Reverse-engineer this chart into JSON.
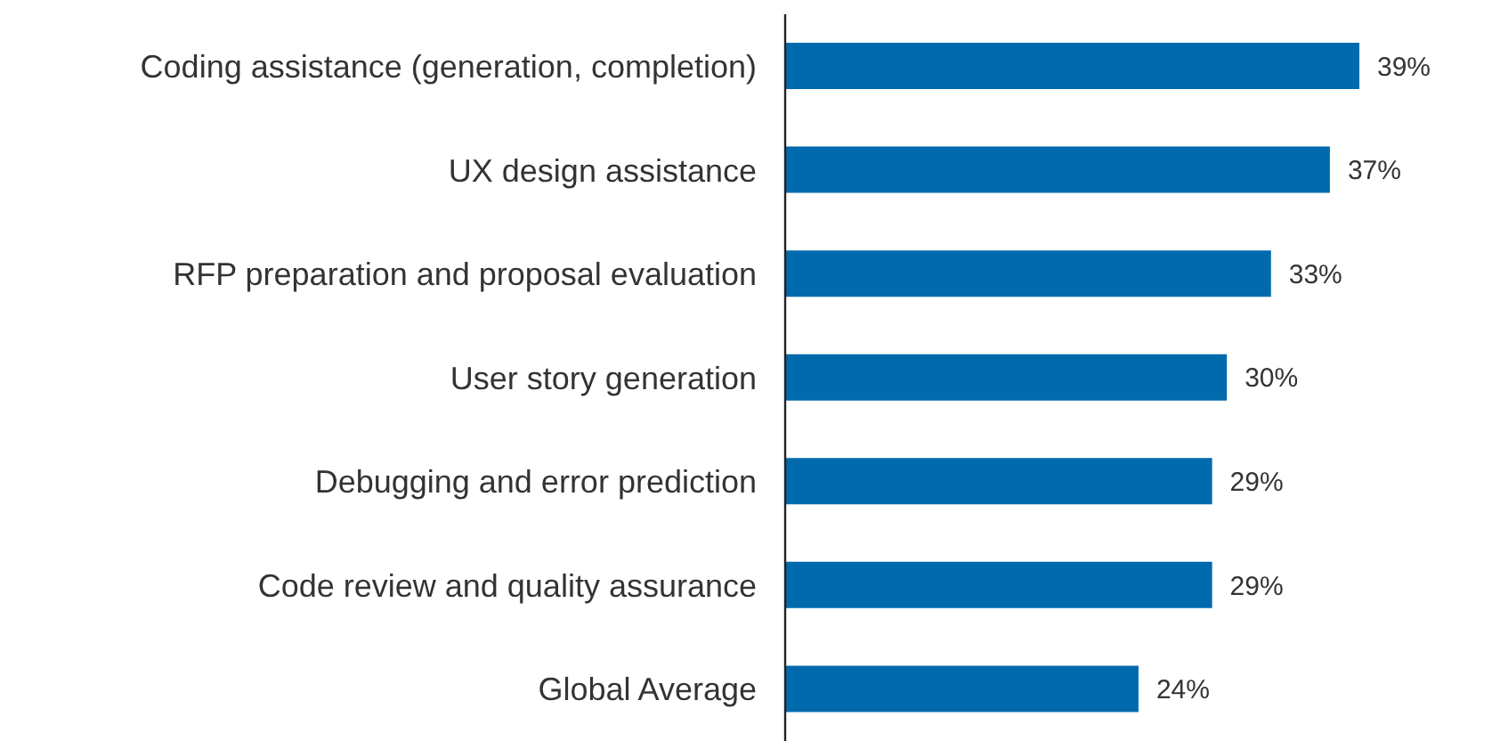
{
  "chart_data": {
    "type": "bar",
    "orientation": "horizontal",
    "categories": [
      "Coding assistance (generation, completion)",
      "UX design assistance",
      "RFP preparation and proposal evaluation",
      "User story generation",
      "Debugging and error prediction",
      "Code review and quality assurance",
      "Global Average"
    ],
    "values": [
      39,
      37,
      33,
      30,
      29,
      29,
      24
    ],
    "value_labels": [
      "39%",
      "37%",
      "33%",
      "30%",
      "29%",
      "29%",
      "24%"
    ],
    "color": "#006aad",
    "grid": false,
    "legend": false
  }
}
